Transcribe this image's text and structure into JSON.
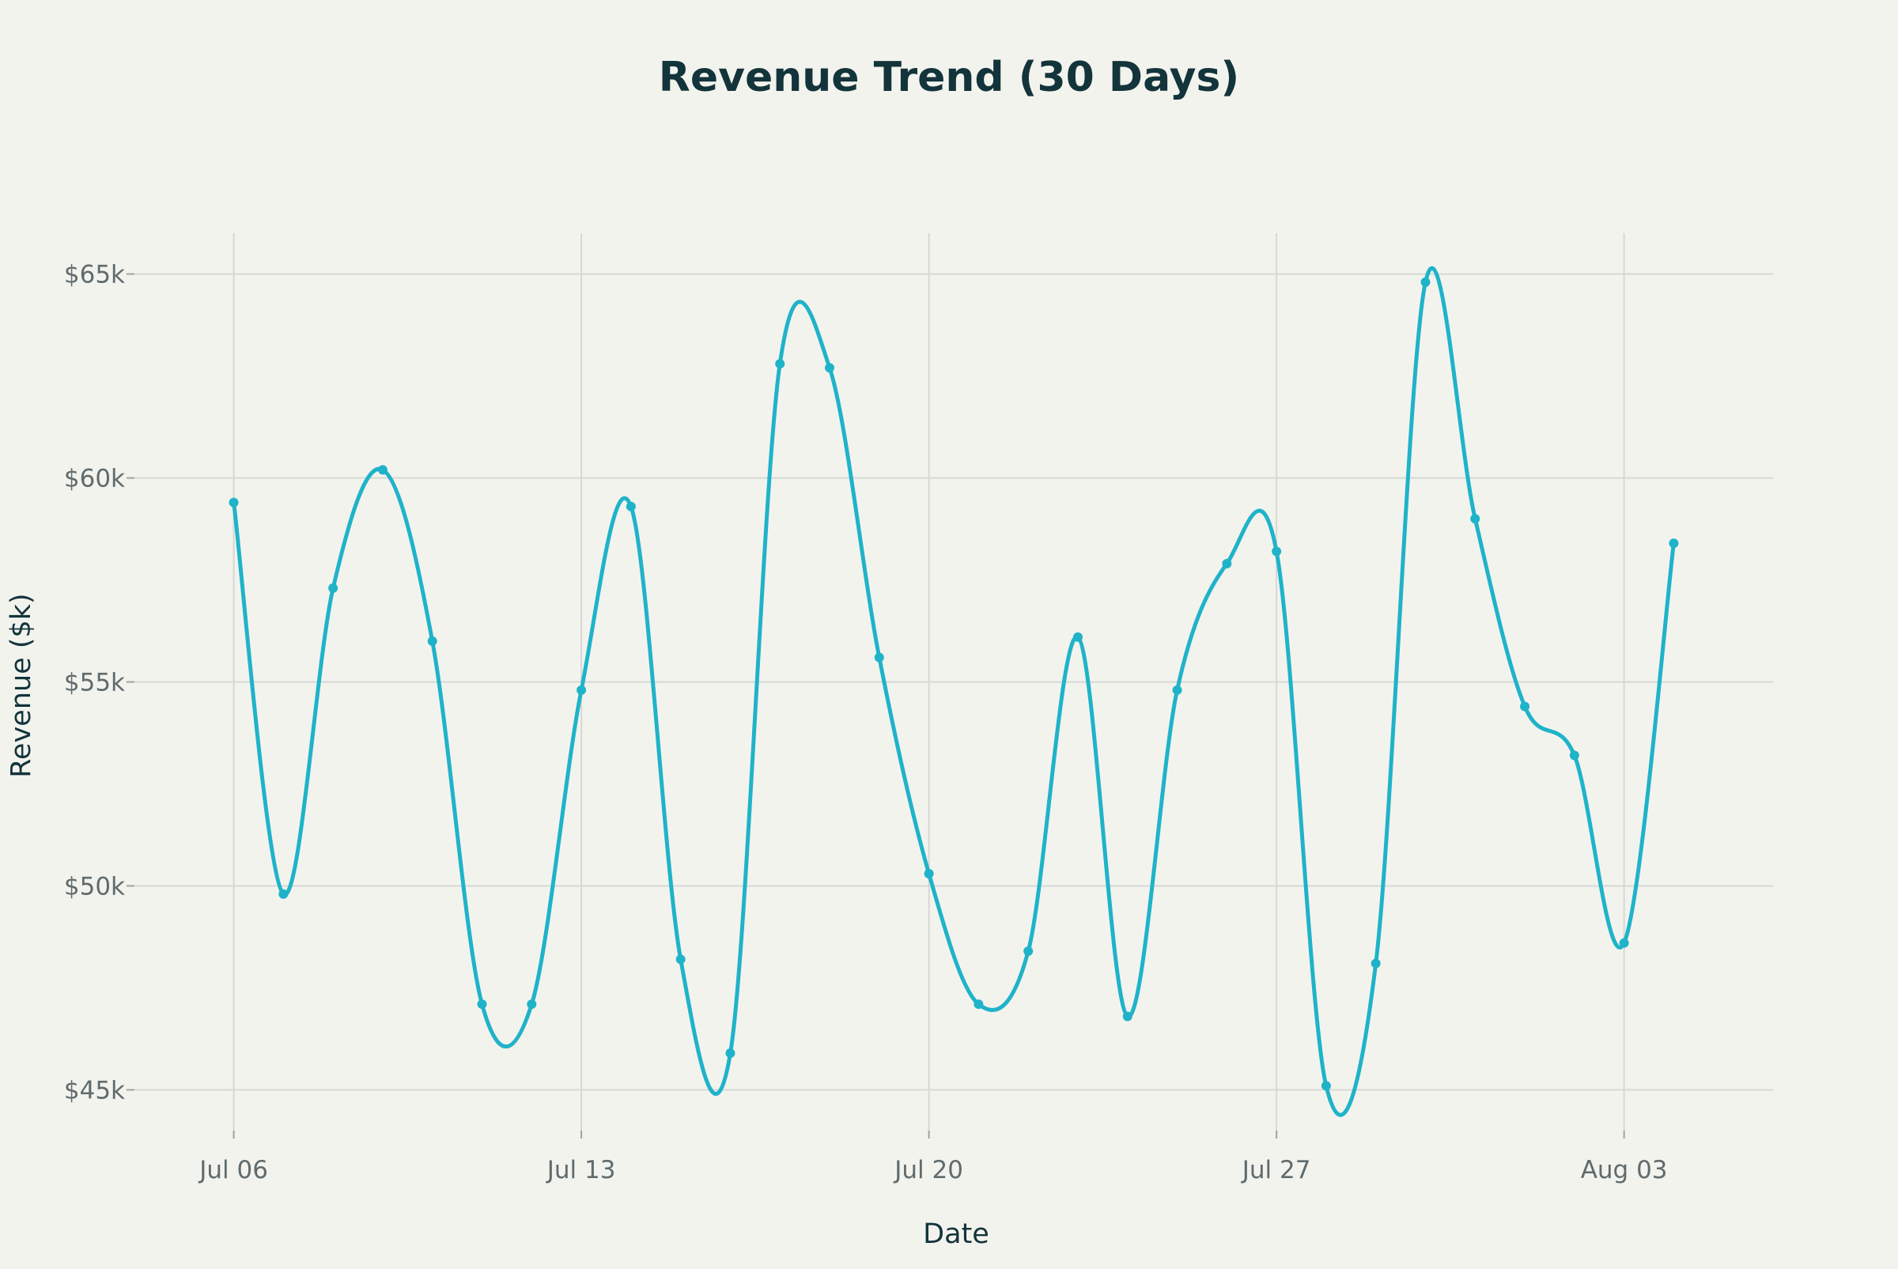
{
  "chart_data": {
    "type": "line",
    "title": "Revenue Trend (30 Days)",
    "xlabel": "Date",
    "ylabel": "Revenue ($k)",
    "x": [
      "2025-07-06",
      "2025-07-07",
      "2025-07-08",
      "2025-07-09",
      "2025-07-10",
      "2025-07-11",
      "2025-07-12",
      "2025-07-13",
      "2025-07-14",
      "2025-07-15",
      "2025-07-16",
      "2025-07-17",
      "2025-07-18",
      "2025-07-19",
      "2025-07-20",
      "2025-07-21",
      "2025-07-22",
      "2025-07-23",
      "2025-07-24",
      "2025-07-25",
      "2025-07-26",
      "2025-07-27",
      "2025-07-28",
      "2025-07-29",
      "2025-07-30",
      "2025-07-31",
      "2025-08-01",
      "2025-08-02",
      "2025-08-03",
      "2025-08-04"
    ],
    "series": [
      {
        "values": [
          59.4,
          49.8,
          57.3,
          60.2,
          56.0,
          47.1,
          47.1,
          54.8,
          59.3,
          48.2,
          45.9,
          62.8,
          62.7,
          55.6,
          50.3,
          47.1,
          48.4,
          56.1,
          46.8,
          54.8,
          57.9,
          58.2,
          45.1,
          48.1,
          64.8,
          59.0,
          54.4,
          53.2,
          48.6,
          58.4
        ]
      }
    ],
    "xticks": [
      {
        "date": "2025-07-06",
        "label": "Jul 06"
      },
      {
        "date": "2025-07-13",
        "label": "Jul 13"
      },
      {
        "date": "2025-07-20",
        "label": "Jul 20"
      },
      {
        "date": "2025-07-27",
        "label": "Jul 27"
      },
      {
        "date": "2025-08-03",
        "label": "Aug 03"
      }
    ],
    "yticks": [
      {
        "value": 45,
        "label": "$45k"
      },
      {
        "value": 50,
        "label": "$50k"
      },
      {
        "value": 55,
        "label": "$55k"
      },
      {
        "value": 60,
        "label": "$60k"
      },
      {
        "value": 65,
        "label": "$65k"
      }
    ],
    "xlim": [
      "2025-07-04",
      "2025-08-06"
    ],
    "ylim": [
      44.0,
      66.0
    ],
    "grid": true,
    "line_shape": "spline",
    "markers": true,
    "colors": {
      "line": "#1fb3c9",
      "background": "#f3f3ee",
      "grid": "#d6d8d4"
    }
  }
}
